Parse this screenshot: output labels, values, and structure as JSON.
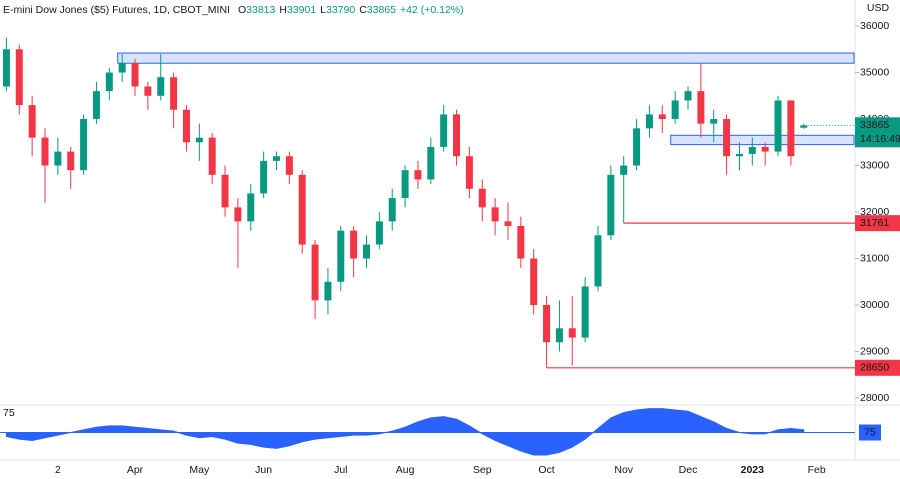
{
  "chart_data": {
    "type": "candlestick",
    "title": "E-mini Dow Jones ($5) Futures, 1D, CBOT_MINI",
    "ohlc_labels": [
      "O",
      "H",
      "L",
      "C"
    ],
    "change": "+42 (+0.12%)",
    "y_axis_label": "USD",
    "countdown": "14:16:49",
    "categories": [
      null,
      null,
      null,
      null,
      "2",
      null,
      null,
      null,
      null,
      null,
      "Apr",
      null,
      null,
      null,
      null,
      "May",
      null,
      null,
      null,
      null,
      "Jun",
      null,
      null,
      null,
      null,
      null,
      "Jul",
      null,
      null,
      null,
      null,
      "Aug",
      null,
      null,
      null,
      null,
      null,
      "Sep",
      null,
      null,
      null,
      null,
      "Oct",
      null,
      null,
      null,
      null,
      null,
      "Nov",
      null,
      null,
      null,
      null,
      "Dec",
      null,
      null,
      null,
      null,
      "2023",
      null,
      null,
      null,
      null,
      "Feb"
    ],
    "open": [
      34700,
      35500,
      34300,
      33600,
      33000,
      33300,
      32900,
      34000,
      34600,
      35000,
      35200,
      34700,
      34500,
      34900,
      34200,
      33500,
      33600,
      32800,
      32100,
      31800,
      32400,
      33100,
      33200,
      32800,
      31300,
      30100,
      30500,
      31600,
      31000,
      31300,
      31800,
      32300,
      32900,
      32700,
      33400,
      34100,
      33200,
      32500,
      32100,
      31800,
      31700,
      31000,
      30000,
      29200,
      29500,
      29300,
      30400,
      31500,
      32800,
      33000,
      33800,
      34100,
      34000,
      34400,
      34600,
      33900,
      34000,
      33200,
      33250,
      33400,
      33300,
      34400,
      33813,
      null
    ],
    "high": [
      35750,
      35600,
      34500,
      33800,
      33600,
      33400,
      34100,
      34800,
      35100,
      35400,
      35300,
      34800,
      35400,
      35000,
      34300,
      33900,
      33700,
      33000,
      32300,
      32600,
      33300,
      33300,
      33300,
      32900,
      31400,
      30800,
      31700,
      31700,
      31500,
      32000,
      32500,
      33000,
      33100,
      33600,
      34300,
      34200,
      33400,
      32700,
      32300,
      32200,
      31900,
      31200,
      30200,
      30100,
      30200,
      30600,
      31700,
      33000,
      33200,
      34000,
      34300,
      34300,
      34600,
      34700,
      35200,
      34200,
      34100,
      33500,
      33600,
      33500,
      34500,
      34400,
      33901,
      null
    ],
    "low": [
      34600,
      34100,
      33200,
      32200,
      32800,
      32500,
      32800,
      33900,
      34400,
      34800,
      34500,
      34200,
      34400,
      33800,
      33300,
      33100,
      32600,
      31900,
      30800,
      31600,
      32300,
      32900,
      32600,
      31100,
      29700,
      29800,
      30300,
      30600,
      30800,
      31200,
      31600,
      32100,
      32500,
      32600,
      33300,
      33000,
      32300,
      31800,
      31500,
      31400,
      30800,
      29800,
      28650,
      29000,
      28700,
      29200,
      30300,
      31400,
      31761,
      32900,
      33600,
      33700,
      33900,
      34200,
      33600,
      33500,
      32800,
      32900,
      33000,
      33000,
      33200,
      33000,
      33790,
      null
    ],
    "close": [
      35500,
      34300,
      33600,
      33000,
      33300,
      32900,
      34000,
      34600,
      35000,
      35200,
      34700,
      34500,
      34900,
      34200,
      33500,
      33600,
      32800,
      32100,
      31800,
      32400,
      33100,
      33200,
      32800,
      31300,
      30100,
      30500,
      31600,
      31000,
      31300,
      31800,
      32300,
      32900,
      32700,
      33400,
      34100,
      33200,
      32500,
      32100,
      31800,
      31700,
      31000,
      30000,
      29200,
      29500,
      29300,
      30400,
      31500,
      32800,
      33000,
      33800,
      34100,
      34000,
      34400,
      34600,
      33900,
      34000,
      33200,
      33250,
      33400,
      33300,
      34400,
      33200,
      33865,
      null
    ],
    "up_color": "#089981",
    "down_color": "#f23645",
    "ylim": [
      27850,
      36560
    ],
    "yticks": [
      28000,
      29000,
      30000,
      31000,
      32000,
      33000,
      34000,
      35000,
      36000
    ],
    "levels": [
      31761,
      28650
    ],
    "level_color": "#f23645",
    "zones": [
      [
        35200,
        35420
      ],
      [
        33450,
        33650
      ]
    ],
    "zone_color": "#2962ff",
    "indicator": {
      "type": "area",
      "baseline": 75,
      "ylim": [
        55,
        95
      ],
      "color": "#2962ff",
      "values": [
        72,
        70,
        69,
        71,
        73,
        75,
        77,
        79,
        80,
        80,
        79,
        78,
        77,
        76,
        73,
        71,
        72,
        70,
        67,
        66,
        64,
        63,
        65,
        68,
        70,
        71,
        72,
        73,
        73,
        74,
        76,
        79,
        83,
        86,
        87,
        85,
        80,
        74,
        69,
        65,
        61,
        58,
        58,
        60,
        64,
        70,
        78,
        86,
        90,
        92,
        93,
        93,
        92,
        91,
        87,
        83,
        78,
        75,
        74,
        74,
        77,
        78,
        77,
        null
      ]
    }
  }
}
